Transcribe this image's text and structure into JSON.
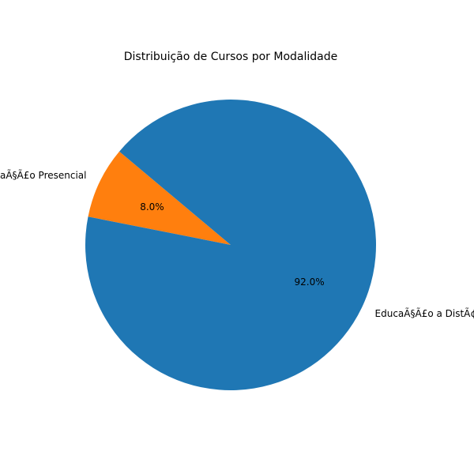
{
  "chart_data": {
    "type": "pie",
    "title": "Distribuição de Cursos por Modalidade",
    "categories": [
      "EducaÃ§Ã£o Presencial",
      "EducaÃ§Ã£o a DistÃ¢ncia"
    ],
    "values": [
      8.0,
      92.0
    ],
    "percent_labels": [
      "8.0%",
      "92.0%"
    ],
    "colors": [
      "#ff7f0e",
      "#1f77b4"
    ],
    "legend": "none"
  }
}
